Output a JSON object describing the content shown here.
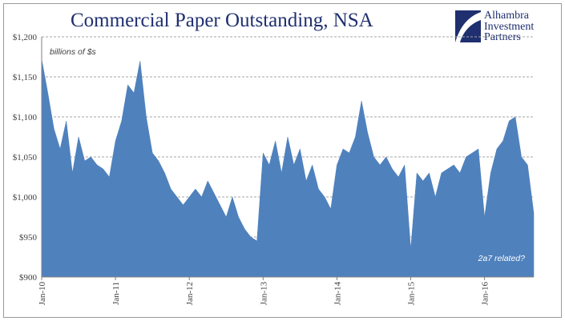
{
  "logo": {
    "line1": "Alhambra",
    "line2": "Investment",
    "line3": "Partners",
    "colors": {
      "primary": "#1f2f6f"
    }
  },
  "chart_data": {
    "type": "area",
    "title": "Commercial Paper Outstanding, NSA",
    "units_note": "billions of $s",
    "annotation": "2a7 related?",
    "ylim": [
      900,
      1200
    ],
    "y_ticks": [
      900,
      950,
      1000,
      1050,
      1100,
      1150,
      1200
    ],
    "y_tick_labels": [
      "$900",
      "$950",
      "$1,000",
      "$1,050",
      "$1,100",
      "$1,150",
      "$1,200"
    ],
    "x_range": [
      "2010-01",
      "2016-09"
    ],
    "x_ticks": [
      "2010-01",
      "2011-01",
      "2012-01",
      "2013-01",
      "2014-01",
      "2015-01",
      "2016-01"
    ],
    "x_tick_labels": [
      "Jan-10",
      "Jan-11",
      "Jan-12",
      "Jan-13",
      "Jan-14",
      "Jan-15",
      "Jan-16"
    ],
    "grid": "horizontal dashed",
    "fill_color": "#4f81bd",
    "series": [
      {
        "x": [
          "2010-01",
          "2010-02",
          "2010-03",
          "2010-04",
          "2010-05",
          "2010-06",
          "2010-07",
          "2010-08",
          "2010-09",
          "2010-10",
          "2010-11",
          "2010-12",
          "2011-01",
          "2011-02",
          "2011-03",
          "2011-04",
          "2011-05",
          "2011-06",
          "2011-07",
          "2011-08",
          "2011-09",
          "2011-10",
          "2011-11",
          "2011-12",
          "2012-01",
          "2012-02",
          "2012-03",
          "2012-04",
          "2012-05",
          "2012-06",
          "2012-07",
          "2012-08",
          "2012-09",
          "2012-10",
          "2012-11",
          "2012-12",
          "2013-01",
          "2013-02",
          "2013-03",
          "2013-04",
          "2013-05",
          "2013-06",
          "2013-07",
          "2013-08",
          "2013-09",
          "2013-10",
          "2013-11",
          "2013-12",
          "2014-01",
          "2014-02",
          "2014-03",
          "2014-04",
          "2014-05",
          "2014-06",
          "2014-07",
          "2014-08",
          "2014-09",
          "2014-10",
          "2014-11",
          "2014-12",
          "2015-01",
          "2015-02",
          "2015-03",
          "2015-04",
          "2015-05",
          "2015-06",
          "2015-07",
          "2015-08",
          "2015-09",
          "2015-10",
          "2015-11",
          "2015-12",
          "2016-01",
          "2016-02",
          "2016-03",
          "2016-04",
          "2016-05",
          "2016-06",
          "2016-07",
          "2016-08",
          "2016-09"
        ],
        "values": [
          1172,
          1130,
          1085,
          1060,
          1095,
          1030,
          1075,
          1045,
          1050,
          1040,
          1035,
          1025,
          1070,
          1095,
          1140,
          1130,
          1170,
          1100,
          1055,
          1045,
          1030,
          1010,
          1000,
          990,
          1000,
          1010,
          1000,
          1020,
          1005,
          990,
          975,
          1000,
          975,
          960,
          950,
          945,
          1055,
          1040,
          1070,
          1030,
          1075,
          1040,
          1060,
          1020,
          1040,
          1010,
          1000,
          985,
          1040,
          1060,
          1055,
          1075,
          1120,
          1080,
          1050,
          1040,
          1050,
          1035,
          1025,
          1040,
          935,
          1030,
          1020,
          1030,
          1000,
          1030,
          1035,
          1040,
          1030,
          1050,
          1055,
          1060,
          975,
          1030,
          1060,
          1070,
          1095,
          1100,
          1050,
          1040,
          980
        ]
      }
    ]
  }
}
